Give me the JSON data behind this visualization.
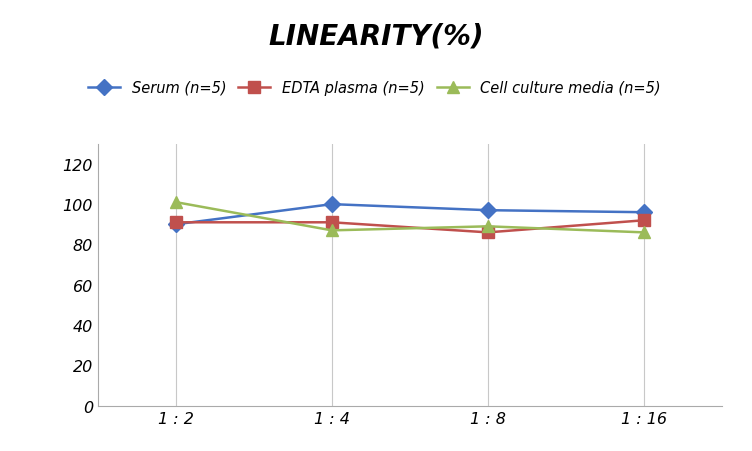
{
  "title": "LINEARITY(%)",
  "x_labels": [
    "1 : 2",
    "1 : 4",
    "1 : 8",
    "1 : 16"
  ],
  "x_positions": [
    0,
    1,
    2,
    3
  ],
  "series": [
    {
      "label": "Serum (n=5)",
      "color": "#4472C4",
      "marker": "D",
      "values": [
        90,
        100,
        97,
        96
      ]
    },
    {
      "label": "EDTA plasma (n=5)",
      "color": "#C0504D",
      "marker": "s",
      "values": [
        91,
        91,
        86,
        92
      ]
    },
    {
      "label": "Cell culture media (n=5)",
      "color": "#9BBB59",
      "marker": "^",
      "values": [
        101,
        87,
        89,
        86
      ]
    }
  ],
  "ylim": [
    0,
    130
  ],
  "yticks": [
    0,
    20,
    40,
    60,
    80,
    100,
    120
  ],
  "background_color": "#ffffff",
  "grid_color": "#c8c8c8",
  "title_fontsize": 20,
  "legend_fontsize": 10.5,
  "tick_fontsize": 11.5
}
